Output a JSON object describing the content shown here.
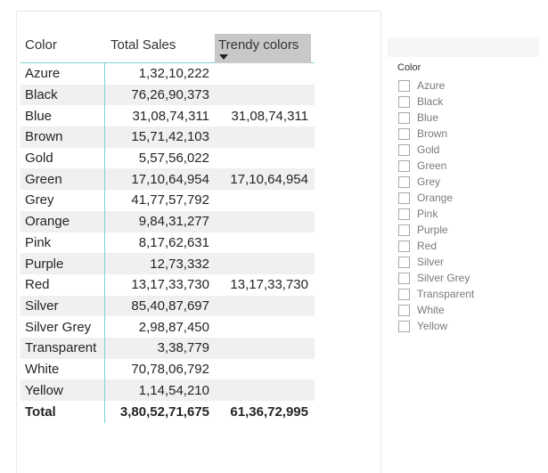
{
  "table": {
    "headers": [
      "Color",
      "Total Sales",
      "Trendy colors"
    ],
    "rows": [
      {
        "color": "Azure",
        "sales": "1,32,10,222",
        "trendy": ""
      },
      {
        "color": "Black",
        "sales": "76,26,90,373",
        "trendy": ""
      },
      {
        "color": "Blue",
        "sales": "31,08,74,311",
        "trendy": "31,08,74,311"
      },
      {
        "color": "Brown",
        "sales": "15,71,42,103",
        "trendy": ""
      },
      {
        "color": "Gold",
        "sales": "5,57,56,022",
        "trendy": ""
      },
      {
        "color": "Green",
        "sales": "17,10,64,954",
        "trendy": "17,10,64,954"
      },
      {
        "color": "Grey",
        "sales": "41,77,57,792",
        "trendy": ""
      },
      {
        "color": "Orange",
        "sales": "9,84,31,277",
        "trendy": ""
      },
      {
        "color": "Pink",
        "sales": "8,17,62,631",
        "trendy": ""
      },
      {
        "color": "Purple",
        "sales": "12,73,332",
        "trendy": ""
      },
      {
        "color": "Red",
        "sales": "13,17,33,730",
        "trendy": "13,17,33,730"
      },
      {
        "color": "Silver",
        "sales": "85,40,87,697",
        "trendy": ""
      },
      {
        "color": "Silver Grey",
        "sales": "2,98,87,450",
        "trendy": ""
      },
      {
        "color": "Transparent",
        "sales": "3,38,779",
        "trendy": ""
      },
      {
        "color": "White",
        "sales": "70,78,06,792",
        "trendy": ""
      },
      {
        "color": "Yellow",
        "sales": "1,14,54,210",
        "trendy": ""
      }
    ],
    "total": {
      "color": "Total",
      "sales": "3,80,52,71,675",
      "trendy": "61,36,72,995"
    }
  },
  "slicer": {
    "title": "Color",
    "items": [
      "Azure",
      "Black",
      "Blue",
      "Brown",
      "Gold",
      "Green",
      "Grey",
      "Orange",
      "Pink",
      "Purple",
      "Red",
      "Silver",
      "Silver Grey",
      "Transparent",
      "White",
      "Yellow"
    ]
  },
  "colors": {
    "accent_border": "#7dd3ce",
    "sorted_header_bg": "#c8c8c8",
    "alt_row_bg": "#f0f0f0"
  }
}
